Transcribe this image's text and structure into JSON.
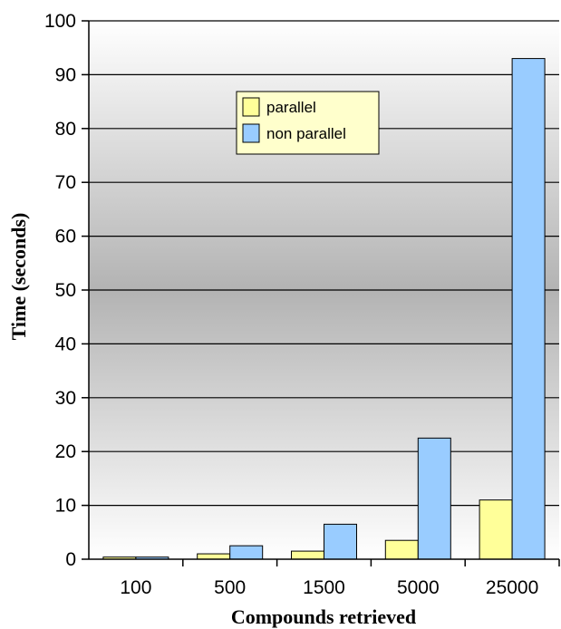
{
  "chart_data": {
    "type": "bar",
    "title": "",
    "xlabel": "Compounds retrieved",
    "ylabel": "Time (seconds)",
    "ylim": [
      0,
      100
    ],
    "yticks": [
      0,
      10,
      20,
      30,
      40,
      50,
      60,
      70,
      80,
      90,
      100
    ],
    "categories": [
      "100",
      "500",
      "1500",
      "5000",
      "25000"
    ],
    "series": [
      {
        "name": "parallel",
        "color": "#ffff99",
        "values": [
          0.4,
          1,
          1.5,
          3.5,
          11
        ]
      },
      {
        "name": "non parallel",
        "color": "#99ccff",
        "values": [
          0.4,
          2.5,
          6.5,
          22.5,
          93
        ]
      }
    ],
    "grid": true,
    "legend_position": "top-center"
  }
}
